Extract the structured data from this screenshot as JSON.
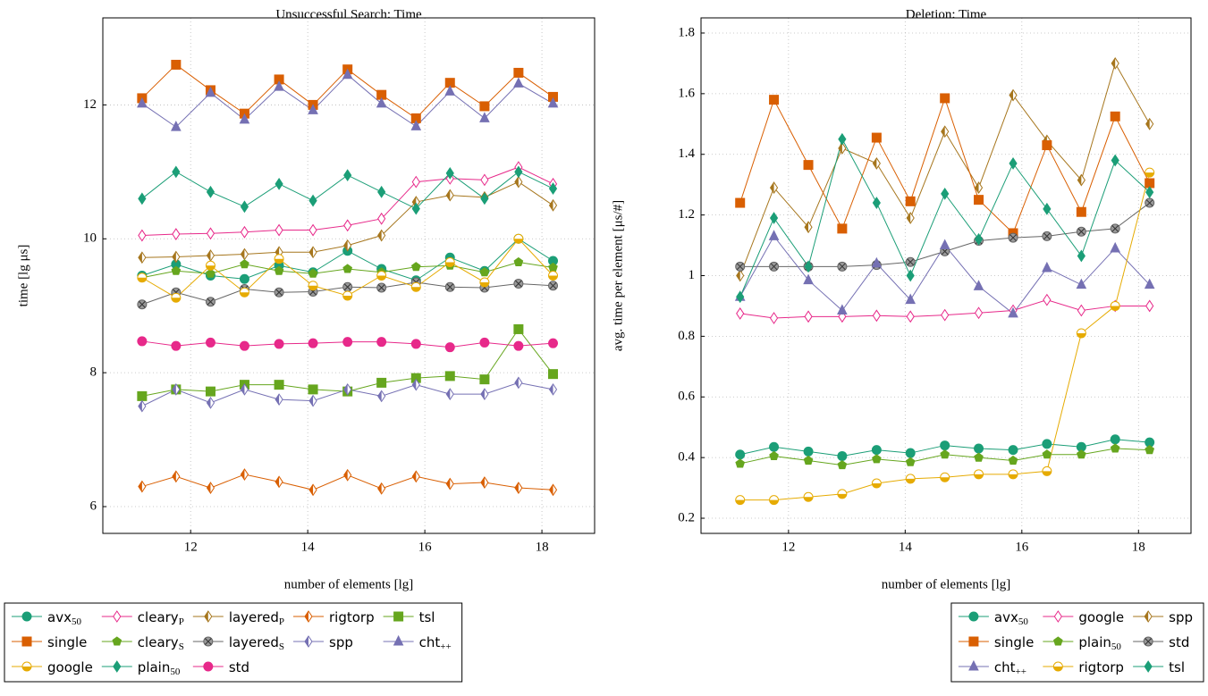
{
  "chart_data": [
    {
      "type": "line",
      "title": "Unsuccessful Search: Time",
      "xlabel": "number of elements [lg]",
      "ylabel": "time [lg μs]",
      "x": [
        11.17,
        11.75,
        12.34,
        12.92,
        13.51,
        14.09,
        14.68,
        15.26,
        15.85,
        16.43,
        17.02,
        17.6,
        18.19
      ],
      "xlim": [
        10.5,
        18.9
      ],
      "xticks": [
        12,
        14,
        16,
        18
      ],
      "ylim": [
        5.6,
        13.3
      ],
      "yticks": [
        6,
        8,
        10,
        12
      ],
      "grid": true,
      "legend": "below-left",
      "legend_columns": 5,
      "series": [
        {
          "name": "avx",
          "sub": "50",
          "color": "#1b9e77",
          "marker": "circle",
          "marker_fill": "solid",
          "values": [
            9.45,
            9.62,
            9.45,
            9.4,
            9.6,
            9.5,
            9.82,
            9.55,
            9.38,
            9.72,
            9.52,
            10.0,
            9.67
          ]
        },
        {
          "name": "cleary",
          "sub": "P",
          "color": "#e7298a",
          "marker": "diamond",
          "marker_fill": "open",
          "values": [
            10.05,
            10.07,
            10.08,
            10.1,
            10.13,
            10.13,
            10.2,
            10.3,
            10.85,
            10.9,
            10.88,
            11.07,
            10.82
          ]
        },
        {
          "name": "layered",
          "sub": "P",
          "color": "#a6761d",
          "marker": "diamond",
          "marker_fill": "half",
          "values": [
            9.72,
            9.73,
            9.75,
            9.77,
            9.8,
            9.8,
            9.9,
            10.05,
            10.55,
            10.65,
            10.62,
            10.85,
            10.5
          ]
        },
        {
          "name": "rigtorp",
          "color": "#d95f02",
          "marker": "diamond",
          "marker_fill": "half",
          "values": [
            6.3,
            6.45,
            6.28,
            6.48,
            6.37,
            6.25,
            6.47,
            6.27,
            6.45,
            6.34,
            6.36,
            6.28,
            6.25
          ]
        },
        {
          "name": "tsl",
          "color": "#66a61e",
          "marker": "square",
          "marker_fill": "solid",
          "values": [
            7.65,
            7.75,
            7.72,
            7.82,
            7.82,
            7.75,
            7.72,
            7.85,
            7.92,
            7.95,
            7.9,
            8.65,
            7.98
          ]
        },
        {
          "name": "single",
          "color": "#d95f02",
          "marker": "square",
          "marker_fill": "solid",
          "values": [
            12.1,
            12.6,
            12.22,
            11.87,
            12.38,
            12.0,
            12.53,
            12.15,
            11.8,
            12.33,
            11.98,
            12.48,
            12.12
          ]
        },
        {
          "name": "cleary",
          "sub": "S",
          "color": "#66a61e",
          "marker": "pentagon",
          "marker_fill": "solid",
          "values": [
            9.42,
            9.52,
            9.48,
            9.62,
            9.52,
            9.48,
            9.55,
            9.5,
            9.58,
            9.6,
            9.5,
            9.65,
            9.57
          ]
        },
        {
          "name": "layered",
          "sub": "S",
          "color": "#666666",
          "marker": "otimes",
          "marker_fill": "gray",
          "values": [
            9.02,
            9.2,
            9.06,
            9.25,
            9.2,
            9.21,
            9.28,
            9.27,
            9.35,
            9.28,
            9.27,
            9.33,
            9.3
          ]
        },
        {
          "name": "spp",
          "color": "#7570b3",
          "marker": "diamond",
          "marker_fill": "half",
          "values": [
            7.5,
            7.75,
            7.55,
            7.75,
            7.6,
            7.58,
            7.75,
            7.65,
            7.82,
            7.68,
            7.68,
            7.85,
            7.75
          ]
        },
        {
          "name": "cht",
          "sub": "++",
          "color": "#7570b3",
          "marker": "triangle",
          "marker_fill": "solid",
          "values": [
            12.02,
            11.67,
            12.18,
            11.78,
            12.27,
            11.92,
            12.45,
            12.02,
            11.68,
            12.2,
            11.8,
            12.32,
            12.02
          ]
        },
        {
          "name": "google",
          "color": "#e6ab02",
          "marker": "circle",
          "marker_fill": "half",
          "values": [
            9.42,
            9.12,
            9.6,
            9.2,
            9.7,
            9.3,
            9.15,
            9.45,
            9.28,
            9.65,
            9.35,
            10.0,
            9.45
          ]
        },
        {
          "name": "plain",
          "sub": "50",
          "color": "#1b9e77",
          "marker": "diamond",
          "marker_fill": "solid",
          "values": [
            10.6,
            11.0,
            10.7,
            10.48,
            10.82,
            10.57,
            10.95,
            10.7,
            10.45,
            10.98,
            10.6,
            11.0,
            10.75
          ]
        },
        {
          "name": "std",
          "color": "#e7298a",
          "marker": "circle",
          "marker_fill": "solid",
          "values": [
            8.47,
            8.4,
            8.45,
            8.4,
            8.43,
            8.44,
            8.46,
            8.46,
            8.43,
            8.38,
            8.45,
            8.4,
            8.44
          ]
        }
      ]
    },
    {
      "type": "line",
      "title": "Deletion: Time",
      "xlabel": "number of elements [lg]",
      "ylabel": "avg. time per element [μs/#]",
      "x": [
        11.17,
        11.75,
        12.34,
        12.92,
        13.51,
        14.09,
        14.68,
        15.26,
        15.85,
        16.43,
        17.02,
        17.6,
        18.19
      ],
      "xlim": [
        10.5,
        18.9
      ],
      "xticks": [
        12,
        14,
        16,
        18
      ],
      "ylim": [
        0.15,
        1.85
      ],
      "yticks": [
        0.2,
        0.4,
        0.6,
        0.8,
        1,
        1.2,
        1.4,
        1.6,
        1.8
      ],
      "grid": true,
      "legend": "below-right",
      "legend_columns": 3,
      "series": [
        {
          "name": "avx",
          "sub": "50",
          "color": "#1b9e77",
          "marker": "circle",
          "marker_fill": "solid",
          "values": [
            0.41,
            0.435,
            0.42,
            0.405,
            0.425,
            0.415,
            0.44,
            0.43,
            0.425,
            0.445,
            0.435,
            0.46,
            0.45
          ]
        },
        {
          "name": "google",
          "color": "#e7298a",
          "marker": "diamond",
          "marker_fill": "open",
          "values": [
            0.875,
            0.86,
            0.865,
            0.865,
            0.868,
            0.865,
            0.87,
            0.877,
            0.885,
            0.92,
            0.885,
            0.9,
            0.9
          ]
        },
        {
          "name": "spp",
          "color": "#a6761d",
          "marker": "diamond",
          "marker_fill": "half",
          "values": [
            1.0,
            1.29,
            1.16,
            1.42,
            1.37,
            1.19,
            1.475,
            1.29,
            1.595,
            1.445,
            1.315,
            1.7,
            1.5
          ]
        },
        {
          "name": "single",
          "color": "#d95f02",
          "marker": "square",
          "marker_fill": "solid",
          "values": [
            1.24,
            1.58,
            1.365,
            1.155,
            1.455,
            1.245,
            1.585,
            1.25,
            1.14,
            1.43,
            1.21,
            1.525,
            1.305
          ]
        },
        {
          "name": "plain",
          "sub": "50",
          "color": "#66a61e",
          "marker": "pentagon",
          "marker_fill": "solid",
          "values": [
            0.38,
            0.405,
            0.39,
            0.375,
            0.395,
            0.385,
            0.41,
            0.4,
            0.39,
            0.41,
            0.41,
            0.43,
            0.425
          ]
        },
        {
          "name": "std",
          "color": "#666666",
          "marker": "otimes",
          "marker_fill": "gray",
          "values": [
            1.03,
            1.03,
            1.03,
            1.03,
            1.035,
            1.045,
            1.08,
            1.115,
            1.125,
            1.13,
            1.145,
            1.155,
            1.24
          ]
        },
        {
          "name": "cht",
          "sub": "++",
          "color": "#7570b3",
          "marker": "triangle",
          "marker_fill": "solid",
          "values": [
            0.93,
            1.13,
            0.985,
            0.885,
            1.04,
            0.92,
            1.1,
            0.965,
            0.875,
            1.025,
            0.97,
            1.09,
            0.97
          ]
        },
        {
          "name": "rigtorp",
          "color": "#e6ab02",
          "marker": "circle",
          "marker_fill": "half",
          "values": [
            0.26,
            0.26,
            0.27,
            0.28,
            0.315,
            0.33,
            0.335,
            0.345,
            0.345,
            0.355,
            0.81,
            0.9,
            1.34
          ]
        },
        {
          "name": "tsl",
          "color": "#1b9e77",
          "marker": "diamond",
          "marker_fill": "solid",
          "values": [
            0.93,
            1.19,
            1.03,
            1.45,
            1.24,
            1.0,
            1.27,
            1.12,
            1.37,
            1.22,
            1.065,
            1.38,
            1.275
          ]
        }
      ]
    }
  ]
}
